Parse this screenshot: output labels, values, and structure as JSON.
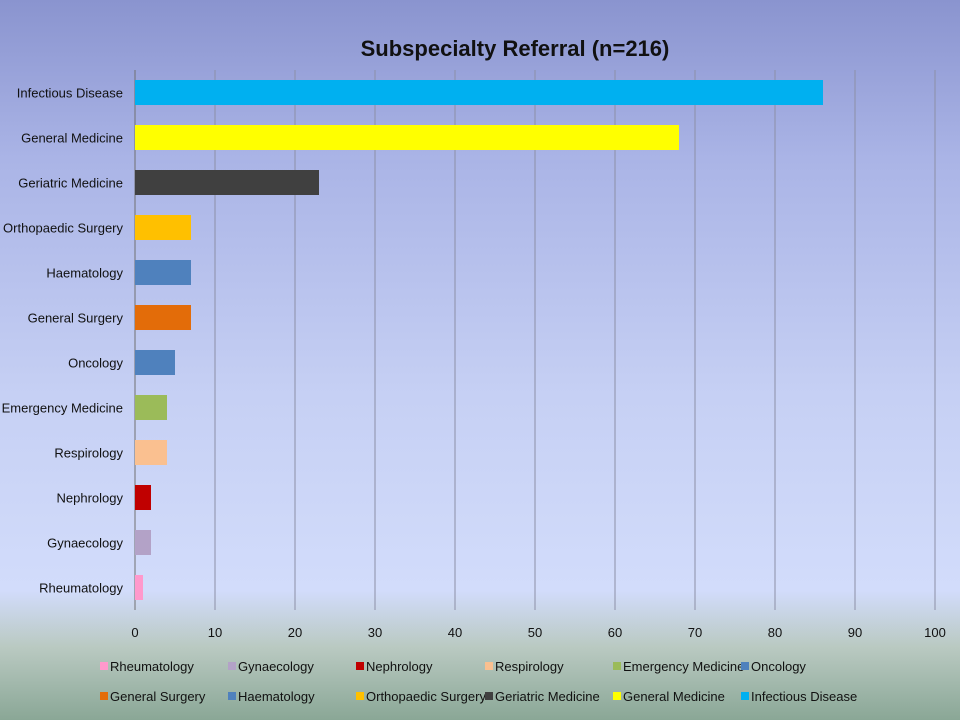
{
  "chart_data": {
    "type": "bar",
    "orientation": "horizontal",
    "title": "Subspecialty Referral (n=216)",
    "xlabel": "",
    "ylabel": "",
    "xlim": [
      0,
      100
    ],
    "x_ticks": [
      "0",
      "10",
      "20",
      "30",
      "40",
      "50",
      "60",
      "70",
      "80",
      "90",
      "100"
    ],
    "grid": true,
    "legend_position": "bottom",
    "categories": [
      "Infectious Disease",
      "General Medicine",
      "Geriatric Medicine",
      "Orthopaedic Surgery",
      "Haematology",
      "General Surgery",
      "Oncology",
      "Emergency Medicine",
      "Respirology",
      "Nephrology",
      "Gynaecology",
      "Rheumatology"
    ],
    "values": [
      86,
      68,
      23,
      7,
      7,
      7,
      5,
      4,
      4,
      2,
      2,
      1
    ],
    "colors": [
      "#00b0f0",
      "#ffff00",
      "#404040",
      "#ffc000",
      "#4f81bd",
      "#e36c09",
      "#4f81bd",
      "#9bbb59",
      "#fac090",
      "#c00000",
      "#b3a2c7",
      "#ff99cc"
    ],
    "legend": [
      {
        "label": "Rheumatology",
        "color": "#ff99cc"
      },
      {
        "label": "Gynaecology",
        "color": "#b3a2c7"
      },
      {
        "label": "Nephrology",
        "color": "#c00000"
      },
      {
        "label": "Respirology",
        "color": "#fac090"
      },
      {
        "label": "Emergency Medicine",
        "color": "#9bbb59"
      },
      {
        "label": "Oncology",
        "color": "#4f81bd"
      },
      {
        "label": "General Surgery",
        "color": "#e36c09"
      },
      {
        "label": "Haematology",
        "color": "#4f81bd"
      },
      {
        "label": "Orthopaedic Surgery",
        "color": "#ffc000"
      },
      {
        "label": "Geriatric Medicine",
        "color": "#404040"
      },
      {
        "label": "General Medicine",
        "color": "#ffff00"
      },
      {
        "label": "Infectious Disease",
        "color": "#00b0f0"
      }
    ]
  }
}
